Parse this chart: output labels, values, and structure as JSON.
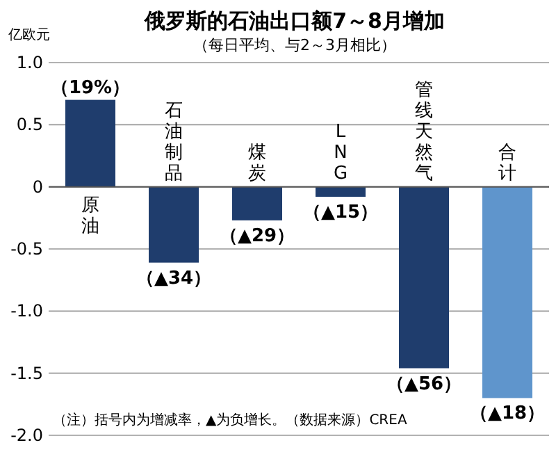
{
  "chart_data": {
    "type": "bar",
    "title": "俄罗斯的石油出口额7～8月增加",
    "subtitle": "（每日平均、与2～3月相比）",
    "ylabel": "亿欧元",
    "categories": [
      "原油",
      "石油制品",
      "煤炭",
      "LNG",
      "管线天然气",
      "合计"
    ],
    "values": [
      0.7,
      -0.61,
      -0.27,
      -0.08,
      -1.46,
      -1.7
    ],
    "colors": [
      "#1f3d6d",
      "#1f3d6d",
      "#1f3d6d",
      "#1f3d6d",
      "#1f3d6d",
      "#5f95cc"
    ],
    "ylim": [
      -2.0,
      1.0
    ],
    "yticks": [
      {
        "value": 1.0,
        "label": "1.0"
      },
      0.5,
      0,
      -0.5,
      {
        "value": -1.0,
        "label": "-1.0"
      },
      -1.5,
      {
        "value": -2.0,
        "label": "-2.0"
      }
    ],
    "grid": "y",
    "annotations": [
      {
        "text": "（19%）",
        "x": "原油",
        "y": 0.7
      },
      {
        "text": "（▲34）",
        "x": "石油制品",
        "y": -0.61
      },
      {
        "text": "（▲29）",
        "x": "煤炭",
        "y": -0.27
      },
      {
        "text": "（▲15）",
        "x": "LNG",
        "y": -0.08
      },
      {
        "text": "（▲56）",
        "x": "管线天然气",
        "y": -1.46
      },
      {
        "text": "（▲18）",
        "x": "合计",
        "y": -1.7
      },
      "（注）括号内为增减率，▲为负增长。（数据来源）CREA"
    ]
  }
}
